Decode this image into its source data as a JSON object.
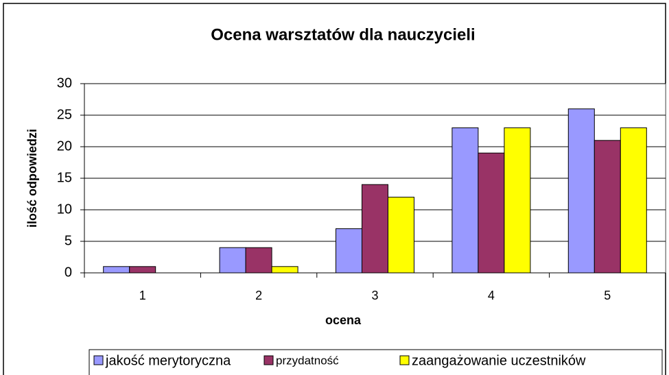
{
  "chart_data": {
    "type": "bar",
    "title": "Ocena warsztatów dla nauczycieli",
    "x_label": "ocena",
    "y_label": "ilość odpowiedzi",
    "categories": [
      "1",
      "2",
      "3",
      "4",
      "5"
    ],
    "series": [
      {
        "name": "jakość merytoryczna",
        "color": "#9999ff",
        "values": [
          1,
          4,
          7,
          23,
          26
        ]
      },
      {
        "name": "przydatność",
        "color": "#993366",
        "values": [
          1,
          4,
          14,
          19,
          21
        ]
      },
      {
        "name": "zaangażowanie uczestników",
        "color": "#ffff00",
        "values": [
          0,
          1,
          12,
          23,
          23
        ]
      }
    ],
    "ylim": [
      0,
      30
    ],
    "yticks": [
      0,
      5,
      10,
      15,
      20,
      25,
      30
    ],
    "grid": true,
    "legend": "bottom"
  }
}
